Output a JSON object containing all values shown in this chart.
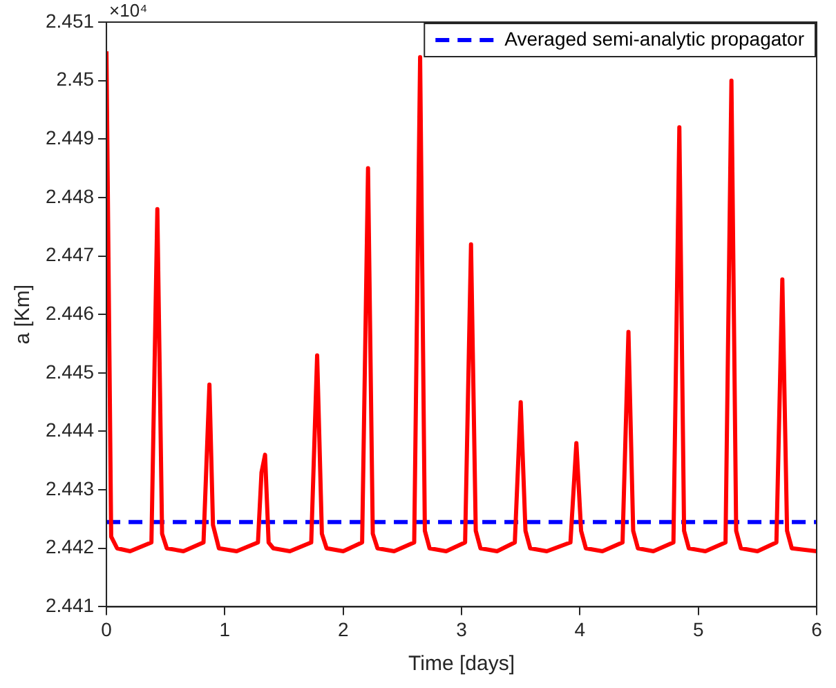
{
  "chart_data": {
    "type": "line",
    "xlabel": "Time [days]",
    "ylabel": "a [Km]",
    "annotations": [
      "×10⁴"
    ],
    "xlim": [
      0,
      6
    ],
    "xticks": [
      0,
      1,
      2,
      3,
      4,
      5,
      6
    ],
    "ylim": [
      2.441,
      2.451
    ],
    "yticks": [
      2.441,
      2.442,
      2.443,
      2.444,
      2.445,
      2.446,
      2.447,
      2.448,
      2.449,
      2.45,
      2.451
    ],
    "grid": false,
    "legend": "top right",
    "marker": "none",
    "series": [
      {
        "color": "#ff0000",
        "line_style": "solid",
        "x": [
          0,
          0.04,
          0.09,
          0.2,
          0.38,
          0.43,
          0.47,
          0.51,
          0.65,
          0.82,
          0.87,
          0.9,
          0.95,
          1.1,
          1.28,
          1.31,
          1.34,
          1.37,
          1.41,
          1.55,
          1.73,
          1.78,
          1.82,
          1.86,
          2.0,
          2.16,
          2.21,
          2.25,
          2.29,
          2.43,
          2.6,
          2.65,
          2.69,
          2.73,
          2.87,
          3.03,
          3.08,
          3.12,
          3.16,
          3.3,
          3.45,
          3.5,
          3.54,
          3.58,
          3.72,
          3.92,
          3.97,
          4.01,
          4.05,
          4.19,
          4.36,
          4.41,
          4.45,
          4.49,
          4.62,
          4.79,
          4.84,
          4.88,
          4.92,
          5.06,
          5.23,
          5.28,
          5.32,
          5.36,
          5.5,
          5.66,
          5.71,
          5.75,
          5.79,
          6
        ],
        "values": [
          2.4505,
          2.4422,
          2.442,
          2.44195,
          2.4421,
          2.4478,
          2.44225,
          2.442,
          2.44195,
          2.4421,
          2.4448,
          2.4424,
          2.442,
          2.44195,
          2.4421,
          2.4433,
          2.4436,
          2.4421,
          2.442,
          2.44195,
          2.4421,
          2.4453,
          2.44225,
          2.442,
          2.44195,
          2.4421,
          2.4485,
          2.44225,
          2.442,
          2.44195,
          2.4421,
          2.4504,
          2.4423,
          2.442,
          2.44195,
          2.4421,
          2.4472,
          2.4423,
          2.442,
          2.44195,
          2.4421,
          2.4445,
          2.4423,
          2.442,
          2.44195,
          2.4421,
          2.4438,
          2.4423,
          2.442,
          2.44195,
          2.4421,
          2.4457,
          2.4423,
          2.442,
          2.44195,
          2.4421,
          2.4492,
          2.4423,
          2.442,
          2.44195,
          2.4421,
          2.45,
          2.4423,
          2.442,
          2.44195,
          2.4421,
          2.4466,
          2.4423,
          2.442,
          2.44195
        ]
      },
      {
        "name": "Averaged semi-analytic propagator",
        "color": "#0000ff",
        "line_style": "dashed",
        "x": [
          0,
          6
        ],
        "values": [
          2.44245,
          2.44245
        ]
      }
    ]
  }
}
